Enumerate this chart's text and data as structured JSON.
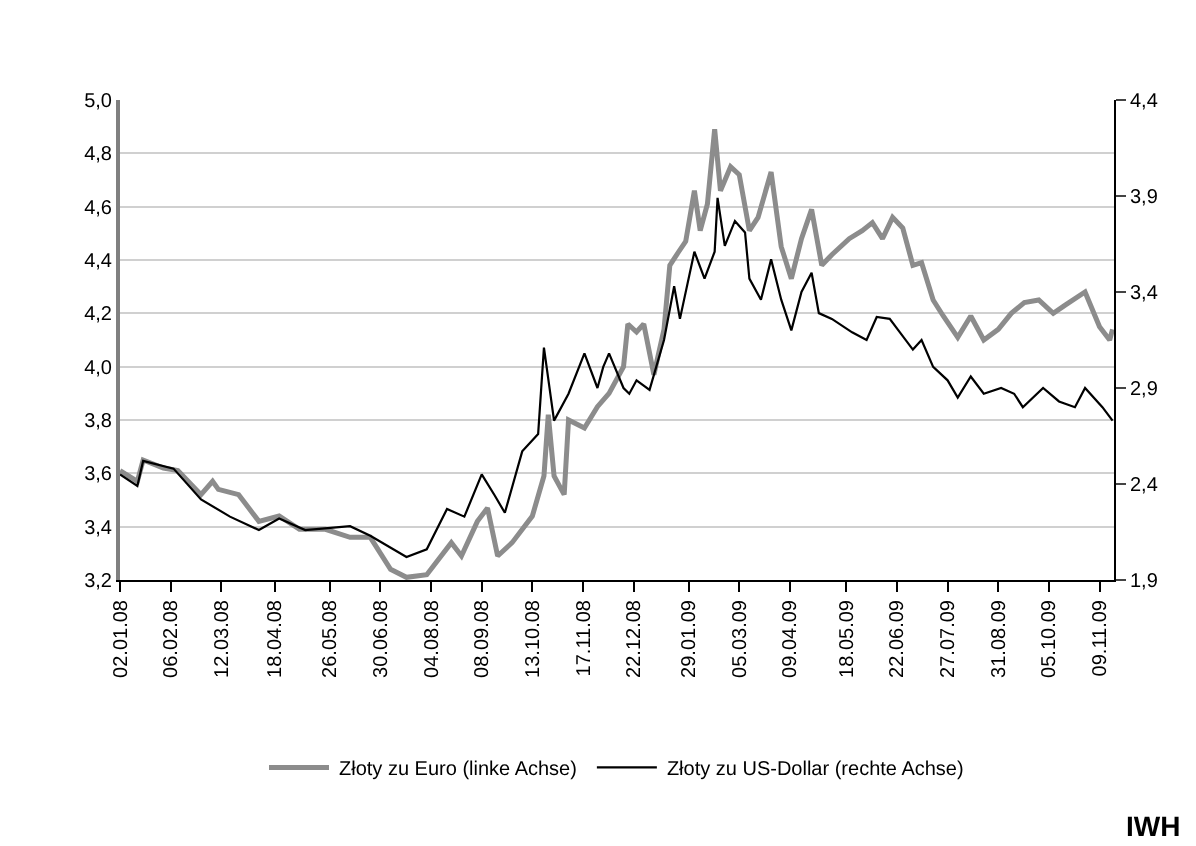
{
  "chart_data": {
    "type": "line",
    "xlim": [
      "2008-01-02",
      "2009-11-19"
    ],
    "xticks": [
      {
        "value": "2008-01-02",
        "label": "02.01.08"
      },
      {
        "value": "2008-02-06",
        "label": "06.02.08"
      },
      {
        "value": "2008-03-12",
        "label": "12.03.08"
      },
      {
        "value": "2008-04-18",
        "label": "18.04.08"
      },
      {
        "value": "2008-05-26",
        "label": "26.05.08"
      },
      {
        "value": "2008-06-30",
        "label": "30.06.08"
      },
      {
        "value": "2008-08-04",
        "label": "04.08.08"
      },
      {
        "value": "2008-09-08",
        "label": "08.09.08"
      },
      {
        "value": "2008-10-13",
        "label": "13.10.08"
      },
      {
        "value": "2008-11-17",
        "label": "17.11.08"
      },
      {
        "value": "2008-12-22",
        "label": "22.12.08"
      },
      {
        "value": "2009-01-29",
        "label": "29.01.09"
      },
      {
        "value": "2009-03-05",
        "label": "05.03.09"
      },
      {
        "value": "2009-04-09",
        "label": "09.04.09"
      },
      {
        "value": "2009-05-18",
        "label": "18.05.09"
      },
      {
        "value": "2009-06-22",
        "label": "22.06.09"
      },
      {
        "value": "2009-07-27",
        "label": "27.07.09"
      },
      {
        "value": "2009-08-31",
        "label": "31.08.09"
      },
      {
        "value": "2009-10-05",
        "label": "05.10.09"
      },
      {
        "value": "2009-11-09",
        "label": "09.11.09"
      }
    ],
    "ylim": [
      3.2,
      5.0
    ],
    "yticks": [
      {
        "value": 3.2,
        "label": "3,2"
      },
      {
        "value": 3.4,
        "label": "3,4"
      },
      {
        "value": 3.6,
        "label": "3,6"
      },
      {
        "value": 3.8,
        "label": "3,8"
      },
      {
        "value": 4.0,
        "label": "4,0"
      },
      {
        "value": 4.2,
        "label": "4,2"
      },
      {
        "value": 4.4,
        "label": "4,4"
      },
      {
        "value": 4.6,
        "label": "4,6"
      },
      {
        "value": 4.8,
        "label": "4,8"
      },
      {
        "value": 5.0,
        "label": "5,0"
      }
    ],
    "y2lim": [
      1.9,
      4.4
    ],
    "y2ticks": [
      {
        "value": 1.9,
        "label": "1,9"
      },
      {
        "value": 2.4,
        "label": "2,4"
      },
      {
        "value": 2.9,
        "label": "2,9"
      },
      {
        "value": 3.4,
        "label": "3,4"
      },
      {
        "value": 3.9,
        "label": "3,9"
      },
      {
        "value": 4.4,
        "label": "4,4"
      }
    ],
    "grid": "y",
    "legend": "bottom",
    "marker": "none",
    "annotations": [
      "IWH"
    ],
    "series": [
      {
        "name": "Złoty zu Euro (linke Achse)",
        "color": "#8c8c8c",
        "x": [
          "2008-01-02",
          "2008-01-14",
          "2008-01-18",
          "2008-02-01",
          "2008-02-11",
          "2008-02-27",
          "2008-03-06",
          "2008-03-10",
          "2008-03-24",
          "2008-04-07",
          "2008-04-21",
          "2008-05-05",
          "2008-05-23",
          "2008-06-09",
          "2008-06-23",
          "2008-07-07",
          "2008-07-18",
          "2008-08-01",
          "2008-08-18",
          "2008-08-25",
          "2008-09-05",
          "2008-09-12",
          "2008-09-19",
          "2008-09-29",
          "2008-10-13",
          "2008-10-21",
          "2008-10-24",
          "2008-10-28",
          "2008-11-04",
          "2008-11-07",
          "2008-11-18",
          "2008-11-27",
          "2008-12-05",
          "2008-12-15",
          "2008-12-18",
          "2008-12-24",
          "2008-12-29",
          "2009-01-05",
          "2009-01-12",
          "2009-01-16",
          "2009-01-22",
          "2009-01-27",
          "2009-02-02",
          "2009-02-06",
          "2009-02-11",
          "2009-02-16",
          "2009-02-20",
          "2009-02-27",
          "2009-03-05",
          "2009-03-12",
          "2009-03-18",
          "2009-03-27",
          "2009-04-03",
          "2009-04-10",
          "2009-04-17",
          "2009-04-24",
          "2009-05-01",
          "2009-05-08",
          "2009-05-20",
          "2009-05-29",
          "2009-06-05",
          "2009-06-12",
          "2009-06-19",
          "2009-06-26",
          "2009-07-03",
          "2009-07-09",
          "2009-07-17",
          "2009-07-24",
          "2009-08-03",
          "2009-08-12",
          "2009-08-21",
          "2009-08-31",
          "2009-09-09",
          "2009-09-18",
          "2009-09-28",
          "2009-10-08",
          "2009-10-16",
          "2009-10-30",
          "2009-11-09",
          "2009-11-16",
          "2009-11-18"
        ],
        "values": [
          3.61,
          3.57,
          3.65,
          3.62,
          3.61,
          3.52,
          3.57,
          3.54,
          3.52,
          3.42,
          3.44,
          3.39,
          3.39,
          3.36,
          3.36,
          3.24,
          3.21,
          3.22,
          3.34,
          3.29,
          3.42,
          3.47,
          3.29,
          3.34,
          3.44,
          3.59,
          3.82,
          3.59,
          3.52,
          3.8,
          3.77,
          3.85,
          3.9,
          4.0,
          4.16,
          4.13,
          4.16,
          3.97,
          4.14,
          4.38,
          4.43,
          4.47,
          4.66,
          4.51,
          4.61,
          4.89,
          4.66,
          4.75,
          4.72,
          4.51,
          4.56,
          4.73,
          4.45,
          4.33,
          4.48,
          4.59,
          4.38,
          4.42,
          4.48,
          4.51,
          4.54,
          4.48,
          4.56,
          4.52,
          4.38,
          4.39,
          4.25,
          4.19,
          4.11,
          4.19,
          4.1,
          4.14,
          4.2,
          4.24,
          4.25,
          4.2,
          4.23,
          4.28,
          4.15,
          4.1,
          4.14
        ]
      },
      {
        "name": "Złoty zu US-Dollar (rechte Achse)",
        "color": "#000000",
        "axis": "y2",
        "x": [
          "2008-01-02",
          "2008-01-14",
          "2008-01-18",
          "2008-02-08",
          "2008-02-27",
          "2008-03-18",
          "2008-04-07",
          "2008-04-21",
          "2008-05-09",
          "2008-06-09",
          "2008-06-23",
          "2008-07-18",
          "2008-08-01",
          "2008-08-15",
          "2008-08-27",
          "2008-09-08",
          "2008-09-17",
          "2008-09-24",
          "2008-10-06",
          "2008-10-17",
          "2008-10-21",
          "2008-10-28",
          "2008-11-07",
          "2008-11-18",
          "2008-11-27",
          "2008-12-01",
          "2008-12-05",
          "2008-12-15",
          "2008-12-19",
          "2008-12-24",
          "2009-01-02",
          "2009-01-12",
          "2009-01-19",
          "2009-01-23",
          "2009-02-02",
          "2009-02-09",
          "2009-02-16",
          "2009-02-18",
          "2009-02-23",
          "2009-03-02",
          "2009-03-09",
          "2009-03-12",
          "2009-03-20",
          "2009-03-27",
          "2009-04-03",
          "2009-04-10",
          "2009-04-17",
          "2009-04-24",
          "2009-04-29",
          "2009-05-08",
          "2009-05-22",
          "2009-06-01",
          "2009-06-08",
          "2009-06-17",
          "2009-06-23",
          "2009-07-03",
          "2009-07-09",
          "2009-07-17",
          "2009-07-27",
          "2009-08-03",
          "2009-08-12",
          "2009-08-21",
          "2009-09-02",
          "2009-09-11",
          "2009-09-17",
          "2009-10-01",
          "2009-10-12",
          "2009-10-23",
          "2009-10-30",
          "2009-11-11",
          "2009-11-18"
        ],
        "values": [
          2.45,
          2.39,
          2.52,
          2.48,
          2.32,
          2.23,
          2.16,
          2.22,
          2.16,
          2.18,
          2.13,
          2.02,
          2.06,
          2.27,
          2.23,
          2.45,
          2.34,
          2.25,
          2.57,
          2.66,
          3.11,
          2.73,
          2.87,
          3.08,
          2.9,
          3.01,
          3.08,
          2.9,
          2.87,
          2.94,
          2.89,
          3.15,
          3.43,
          3.26,
          3.61,
          3.47,
          3.61,
          3.89,
          3.64,
          3.77,
          3.71,
          3.47,
          3.36,
          3.57,
          3.36,
          3.2,
          3.4,
          3.5,
          3.29,
          3.26,
          3.19,
          3.15,
          3.27,
          3.26,
          3.2,
          3.1,
          3.15,
          3.01,
          2.94,
          2.85,
          2.96,
          2.87,
          2.9,
          2.87,
          2.8,
          2.9,
          2.83,
          2.8,
          2.9,
          2.8,
          2.73
        ]
      }
    ]
  }
}
